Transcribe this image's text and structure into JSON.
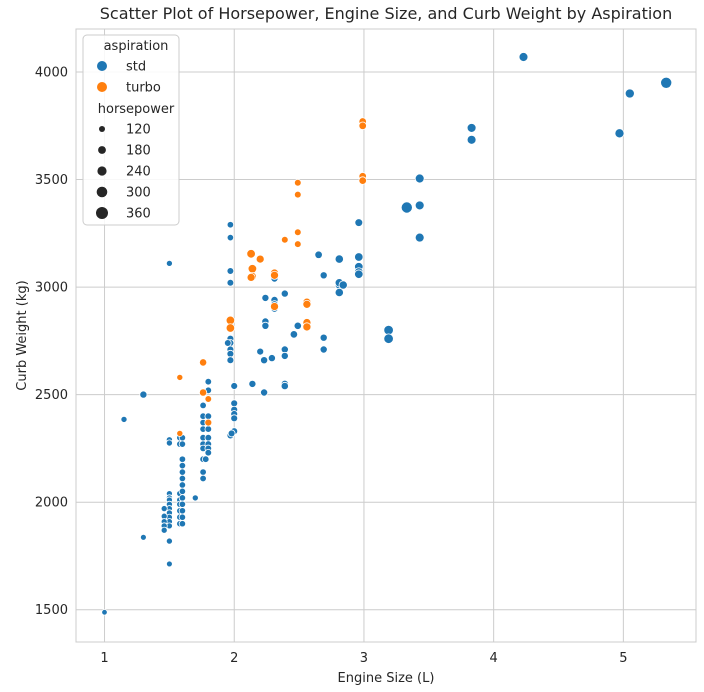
{
  "chart_data": {
    "type": "scatter",
    "title": "Scatter Plot of Horsepower, Engine Size, and Curb Weight by Aspiration",
    "xlabel": "Engine Size (L)",
    "ylabel": "Curb Weight (kg)",
    "xlim": [
      0.78,
      5.56
    ],
    "ylim": [
      1350,
      4200
    ],
    "xticks": [
      1,
      2,
      3,
      4,
      5
    ],
    "yticks": [
      1500,
      2000,
      2500,
      3000,
      3500,
      4000
    ],
    "grid": true,
    "legend_position": "top-left",
    "hue": {
      "title": "aspiration",
      "categories": [
        {
          "name": "std",
          "color": "#1f77b4"
        },
        {
          "name": "turbo",
          "color": "#ff7f0e"
        }
      ]
    },
    "size": {
      "title": "horsepower",
      "levels": [
        120,
        180,
        240,
        300,
        360
      ]
    },
    "series": [
      {
        "name": "std",
        "points": [
          [
            1.0,
            1488,
            48
          ],
          [
            1.15,
            2385,
            70
          ],
          [
            1.3,
            2500,
            110
          ],
          [
            1.3,
            1837,
            62
          ],
          [
            1.5,
            3110,
            68
          ],
          [
            1.5,
            2290,
            72
          ],
          [
            1.5,
            2275,
            70
          ],
          [
            1.5,
            2040,
            68
          ],
          [
            1.5,
            2020,
            70
          ],
          [
            1.5,
            2010,
            68
          ],
          [
            1.5,
            1990,
            70
          ],
          [
            1.5,
            1970,
            68
          ],
          [
            1.5,
            1950,
            70
          ],
          [
            1.5,
            1930,
            68
          ],
          [
            1.5,
            1910,
            70
          ],
          [
            1.5,
            1890,
            68
          ],
          [
            1.5,
            1819,
            70
          ],
          [
            1.5,
            1713,
            62
          ],
          [
            1.46,
            1970,
            70
          ],
          [
            1.46,
            1935,
            68
          ],
          [
            1.46,
            1910,
            68
          ],
          [
            1.46,
            1890,
            70
          ],
          [
            1.46,
            1870,
            68
          ],
          [
            1.58,
            2300,
            78
          ],
          [
            1.58,
            2270,
            78
          ],
          [
            1.58,
            2040,
            76
          ],
          [
            1.58,
            2010,
            76
          ],
          [
            1.58,
            1990,
            76
          ],
          [
            1.58,
            1960,
            76
          ],
          [
            1.58,
            1930,
            76
          ],
          [
            1.58,
            1900,
            76
          ],
          [
            1.6,
            2300,
            82
          ],
          [
            1.6,
            2270,
            82
          ],
          [
            1.6,
            2200,
            84
          ],
          [
            1.6,
            2170,
            84
          ],
          [
            1.6,
            2140,
            82
          ],
          [
            1.6,
            2110,
            82
          ],
          [
            1.6,
            2080,
            82
          ],
          [
            1.6,
            2050,
            82
          ],
          [
            1.6,
            2020,
            82
          ],
          [
            1.6,
            1990,
            82
          ],
          [
            1.6,
            1960,
            82
          ],
          [
            1.6,
            1930,
            82
          ],
          [
            1.6,
            1900,
            82
          ],
          [
            1.7,
            2020,
            70
          ],
          [
            1.76,
            2450,
            86
          ],
          [
            1.76,
            2400,
            86
          ],
          [
            1.76,
            2370,
            86
          ],
          [
            1.76,
            2340,
            86
          ],
          [
            1.76,
            2300,
            86
          ],
          [
            1.76,
            2270,
            86
          ],
          [
            1.76,
            2250,
            86
          ],
          [
            1.76,
            2200,
            86
          ],
          [
            1.76,
            2140,
            86
          ],
          [
            1.76,
            2110,
            86
          ],
          [
            1.8,
            2560,
            88
          ],
          [
            1.8,
            2520,
            88
          ],
          [
            1.8,
            2400,
            92
          ],
          [
            1.8,
            2370,
            92
          ],
          [
            1.8,
            2340,
            90
          ],
          [
            1.8,
            2300,
            90
          ],
          [
            1.8,
            2270,
            90
          ],
          [
            1.8,
            2250,
            90
          ],
          [
            1.8,
            2230,
            90
          ],
          [
            1.78,
            2200,
            90
          ],
          [
            1.97,
            3290,
            84
          ],
          [
            1.97,
            3230,
            84
          ],
          [
            1.97,
            3075,
            95
          ],
          [
            1.97,
            3020,
            95
          ],
          [
            1.97,
            2760,
            101
          ],
          [
            1.97,
            2740,
            101
          ],
          [
            1.97,
            2710,
            101
          ],
          [
            1.97,
            2690,
            101
          ],
          [
            1.97,
            2660,
            101
          ],
          [
            1.95,
            2740,
            95
          ],
          [
            1.97,
            2310,
            95
          ],
          [
            2.0,
            2540,
            100
          ],
          [
            2.0,
            2460,
            100
          ],
          [
            2.0,
            2430,
            100
          ],
          [
            2.0,
            2410,
            100
          ],
          [
            2.0,
            2390,
            100
          ],
          [
            2.0,
            2330,
            100
          ],
          [
            1.98,
            2320,
            100
          ],
          [
            2.14,
            2550,
            110
          ],
          [
            2.2,
            2700,
            102
          ],
          [
            2.23,
            2510,
            110
          ],
          [
            2.23,
            2660,
            110
          ],
          [
            2.24,
            2950,
            110
          ],
          [
            2.24,
            2840,
            110
          ],
          [
            2.24,
            2820,
            110
          ],
          [
            2.29,
            2670,
            110
          ],
          [
            2.31,
            3040,
            111
          ],
          [
            2.31,
            2940,
            111
          ],
          [
            2.31,
            2920,
            111
          ],
          [
            2.31,
            2900,
            111
          ],
          [
            2.39,
            2970,
            110
          ],
          [
            2.39,
            2710,
            110
          ],
          [
            2.39,
            2680,
            110
          ],
          [
            2.39,
            2550,
            115
          ],
          [
            2.39,
            2540,
            115
          ],
          [
            2.49,
            2820,
            120
          ],
          [
            2.46,
            2780,
            121
          ],
          [
            2.65,
            3150,
            123
          ],
          [
            2.69,
            3055,
            110
          ],
          [
            2.69,
            2765,
            110
          ],
          [
            2.69,
            2710,
            110
          ],
          [
            2.81,
            3130,
            154
          ],
          [
            2.81,
            3010,
            154
          ],
          [
            2.81,
            3020,
            154
          ],
          [
            2.84,
            3010,
            154
          ],
          [
            2.81,
            2975,
            154
          ],
          [
            2.96,
            3300,
            134
          ],
          [
            2.96,
            3140,
            160
          ],
          [
            2.96,
            3095,
            160
          ],
          [
            2.96,
            3070,
            160
          ],
          [
            2.96,
            3060,
            160
          ],
          [
            3.19,
            2800,
            200
          ],
          [
            3.19,
            2760,
            200
          ],
          [
            3.33,
            3370,
            262
          ],
          [
            3.43,
            3505,
            176
          ],
          [
            3.43,
            3380,
            176
          ],
          [
            3.43,
            3230,
            176
          ],
          [
            3.83,
            3740,
            176
          ],
          [
            3.83,
            3685,
            176
          ],
          [
            4.23,
            4070,
            176
          ],
          [
            4.97,
            3715,
            184
          ],
          [
            5.05,
            3900,
            184
          ],
          [
            5.33,
            3950,
            262
          ]
        ]
      },
      {
        "name": "turbo",
        "points": [
          [
            1.58,
            2580,
            70
          ],
          [
            1.58,
            2320,
            72
          ],
          [
            1.76,
            2650,
            116
          ],
          [
            1.76,
            2510,
            116
          ],
          [
            1.8,
            2480,
            90
          ],
          [
            1.8,
            2370,
            102
          ],
          [
            1.97,
            2845,
            160
          ],
          [
            1.97,
            2810,
            160
          ],
          [
            2.13,
            3155,
            162
          ],
          [
            2.14,
            3085,
            162
          ],
          [
            2.14,
            3050,
            140
          ],
          [
            2.13,
            3045,
            142
          ],
          [
            2.2,
            3130,
            143
          ],
          [
            2.31,
            3065,
            145
          ],
          [
            2.31,
            3055,
            145
          ],
          [
            2.31,
            2910,
            145
          ],
          [
            2.39,
            3220,
            95
          ],
          [
            2.49,
            3485,
            95
          ],
          [
            2.49,
            3430,
            95
          ],
          [
            2.49,
            3255,
            95
          ],
          [
            2.49,
            3200,
            95
          ],
          [
            2.56,
            2930,
            145
          ],
          [
            2.56,
            2920,
            145
          ],
          [
            2.56,
            2835,
            145
          ],
          [
            2.56,
            2815,
            145
          ],
          [
            2.99,
            3770,
            123
          ],
          [
            2.99,
            3750,
            123
          ],
          [
            2.99,
            3515,
            123
          ],
          [
            2.99,
            3495,
            123
          ]
        ]
      }
    ]
  }
}
